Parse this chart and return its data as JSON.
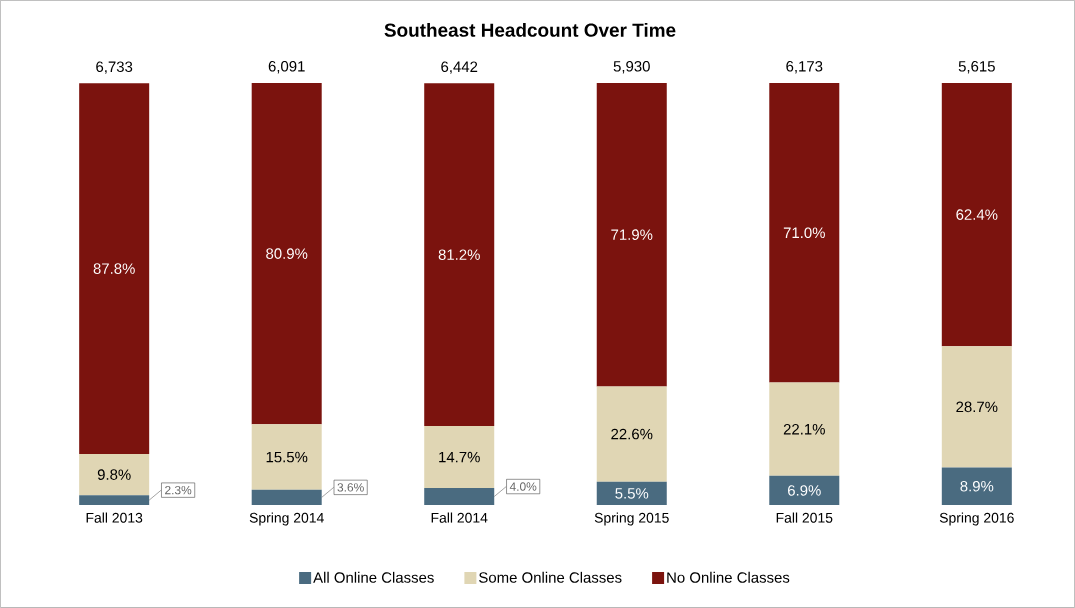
{
  "chart_data": {
    "type": "bar",
    "title": "Southeast Headcount Over Time",
    "stacked": true,
    "legend": "bottom",
    "categories": [
      "Fall 2013",
      "Spring 2014",
      "Fall 2014",
      "Spring 2015",
      "Fall 2015",
      "Spring 2016"
    ],
    "series": [
      {
        "name": "All Online Classes",
        "color": "#4a6b80",
        "values": [
          2.3,
          3.6,
          4.0,
          5.5,
          6.9,
          8.9
        ],
        "value_labels": [
          "2.3%",
          "3.6%",
          "4.0%",
          "5.5%",
          "6.9%",
          "8.9%"
        ]
      },
      {
        "name": "Some Online Classes",
        "color": "#e0d6b4",
        "values": [
          9.8,
          15.5,
          14.7,
          22.6,
          22.1,
          28.7
        ],
        "value_labels": [
          "9.8%",
          "15.5%",
          "14.7%",
          "22.6%",
          "22.1%",
          "28.7%"
        ]
      },
      {
        "name": "No Online Classes",
        "color": "#7b130e",
        "values": [
          87.8,
          80.9,
          81.2,
          71.9,
          71.0,
          62.4
        ],
        "value_labels": [
          "87.8%",
          "80.9%",
          "81.2%",
          "71.9%",
          "71.0%",
          "62.4%"
        ]
      }
    ],
    "annotations": [
      "6,733",
      "6,091",
      "6,442",
      "5,930",
      "6,173",
      "5,615"
    ]
  }
}
